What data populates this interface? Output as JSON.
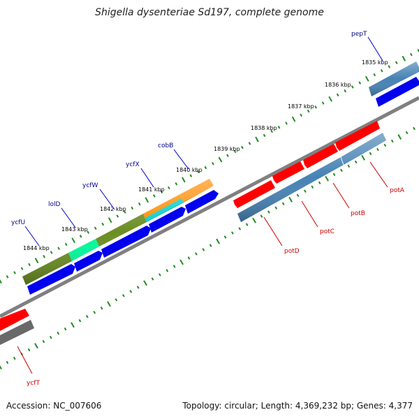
{
  "title": "Shigella dysenteriae Sd197, complete genome",
  "footer": {
    "accession": "Accession: NC_007606",
    "summary": "Topology: circular; Length: 4,369,232 bp; Genes: 4,377"
  },
  "colors": {
    "ruler": "#228B22",
    "backbone": "#808080",
    "forward_label": "#00008B",
    "reverse_label": "#CC0000"
  },
  "scale_labels": [
    "1835 kbp",
    "1836 kbp",
    "1837 kbp",
    "1838 kbp",
    "1839 kbp",
    "1840 kbp",
    "1841 kbp",
    "1842 kbp",
    "1843 kbp",
    "1844 kbp"
  ],
  "forward_genes": [
    {
      "name": "pepT",
      "color": "#4682B4"
    },
    {
      "name": "cobB",
      "color": "#FF8C00"
    },
    {
      "name": "ycfX",
      "color": "#00CED1"
    },
    {
      "name": "ycfW",
      "color": "#6B8E23"
    },
    {
      "name": "lolD",
      "color": "#00FA9A"
    },
    {
      "name": "ycfU",
      "color": "#6B8E23"
    }
  ],
  "reverse_genes": [
    {
      "name": "potA",
      "color": "#4682B4"
    },
    {
      "name": "potB",
      "color": "#4682B4"
    },
    {
      "name": "potC",
      "color": "#FF0000"
    },
    {
      "name": "potD",
      "color": "#FF0000"
    },
    {
      "name": "ycfT",
      "color": "#696969"
    }
  ]
}
